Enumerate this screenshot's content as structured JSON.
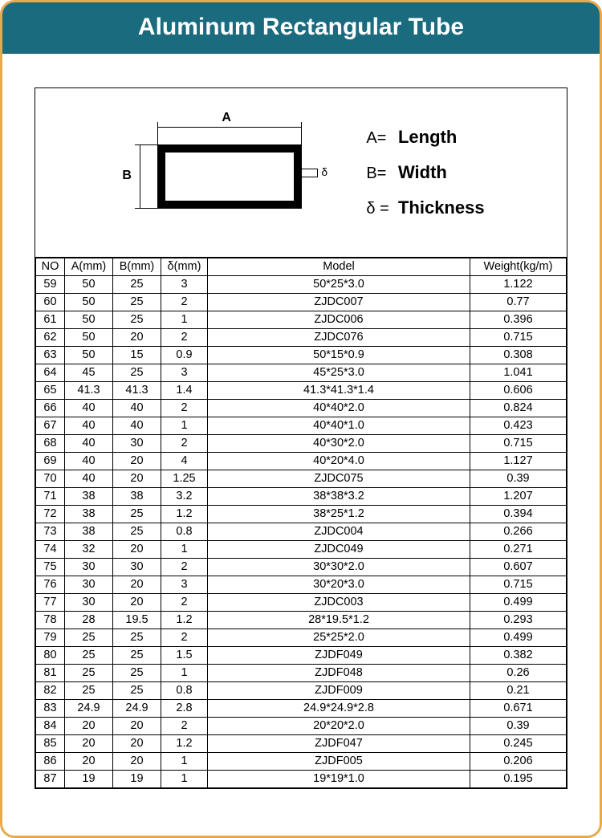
{
  "title": "Aluminum Rectangular Tube",
  "legend": {
    "a_sym": "A=",
    "a_val": "Length",
    "b_sym": "B=",
    "b_val": "Width",
    "d_sym": "δ =",
    "d_val": "Thickness"
  },
  "diagram_labels": {
    "a": "A",
    "b": "B",
    "delta": "δ"
  },
  "columns": [
    "NO",
    "A(mm)",
    "B(mm)",
    "δ(mm)",
    "Model",
    "Weight(kg/m)"
  ],
  "rows": [
    [
      "59",
      "50",
      "25",
      "3",
      "50*25*3.0",
      "1.122"
    ],
    [
      "60",
      "50",
      "25",
      "2",
      "ZJDC007",
      "0.77"
    ],
    [
      "61",
      "50",
      "25",
      "1",
      "ZJDC006",
      "0.396"
    ],
    [
      "62",
      "50",
      "20",
      "2",
      "ZJDC076",
      "0.715"
    ],
    [
      "63",
      "50",
      "15",
      "0.9",
      "50*15*0.9",
      "0.308"
    ],
    [
      "64",
      "45",
      "25",
      "3",
      "45*25*3.0",
      "1.041"
    ],
    [
      "65",
      "41.3",
      "41.3",
      "1.4",
      "41.3*41.3*1.4",
      "0.606"
    ],
    [
      "66",
      "40",
      "40",
      "2",
      "40*40*2.0",
      "0.824"
    ],
    [
      "67",
      "40",
      "40",
      "1",
      "40*40*1.0",
      "0.423"
    ],
    [
      "68",
      "40",
      "30",
      "2",
      "40*30*2.0",
      "0.715"
    ],
    [
      "69",
      "40",
      "20",
      "4",
      "40*20*4.0",
      "1.127"
    ],
    [
      "70",
      "40",
      "20",
      "1.25",
      "ZJDC075",
      "0.39"
    ],
    [
      "71",
      "38",
      "38",
      "3.2",
      "38*38*3.2",
      "1.207"
    ],
    [
      "72",
      "38",
      "25",
      "1.2",
      "38*25*1.2",
      "0.394"
    ],
    [
      "73",
      "38",
      "25",
      "0.8",
      "ZJDC004",
      "0.266"
    ],
    [
      "74",
      "32",
      "20",
      "1",
      "ZJDC049",
      "0.271"
    ],
    [
      "75",
      "30",
      "30",
      "2",
      "30*30*2.0",
      "0.607"
    ],
    [
      "76",
      "30",
      "20",
      "3",
      "30*20*3.0",
      "0.715"
    ],
    [
      "77",
      "30",
      "20",
      "2",
      "ZJDC003",
      "0.499"
    ],
    [
      "78",
      "28",
      "19.5",
      "1.2",
      "28*19.5*1.2",
      "0.293"
    ],
    [
      "79",
      "25",
      "25",
      "2",
      "25*25*2.0",
      "0.499"
    ],
    [
      "80",
      "25",
      "25",
      "1.5",
      "ZJDF049",
      "0.382"
    ],
    [
      "81",
      "25",
      "25",
      "1",
      "ZJDF048",
      "0.26"
    ],
    [
      "82",
      "25",
      "25",
      "0.8",
      "ZJDF009",
      "0.21"
    ],
    [
      "83",
      "24.9",
      "24.9",
      "2.8",
      "24.9*24.9*2.8",
      "0.671"
    ],
    [
      "84",
      "20",
      "20",
      "2",
      "20*20*2.0",
      "0.39"
    ],
    [
      "85",
      "20",
      "20",
      "1.2",
      "ZJDF047",
      "0.245"
    ],
    [
      "86",
      "20",
      "20",
      "1",
      "ZJDF005",
      "0.206"
    ],
    [
      "87",
      "19",
      "19",
      "1",
      "19*19*1.0",
      "0.195"
    ]
  ],
  "colors": {
    "frame_border": "#e8a948",
    "title_bg": "#1a6b7d",
    "title_text": "#ffffff",
    "table_border": "#000000",
    "background": "#ffffff"
  }
}
